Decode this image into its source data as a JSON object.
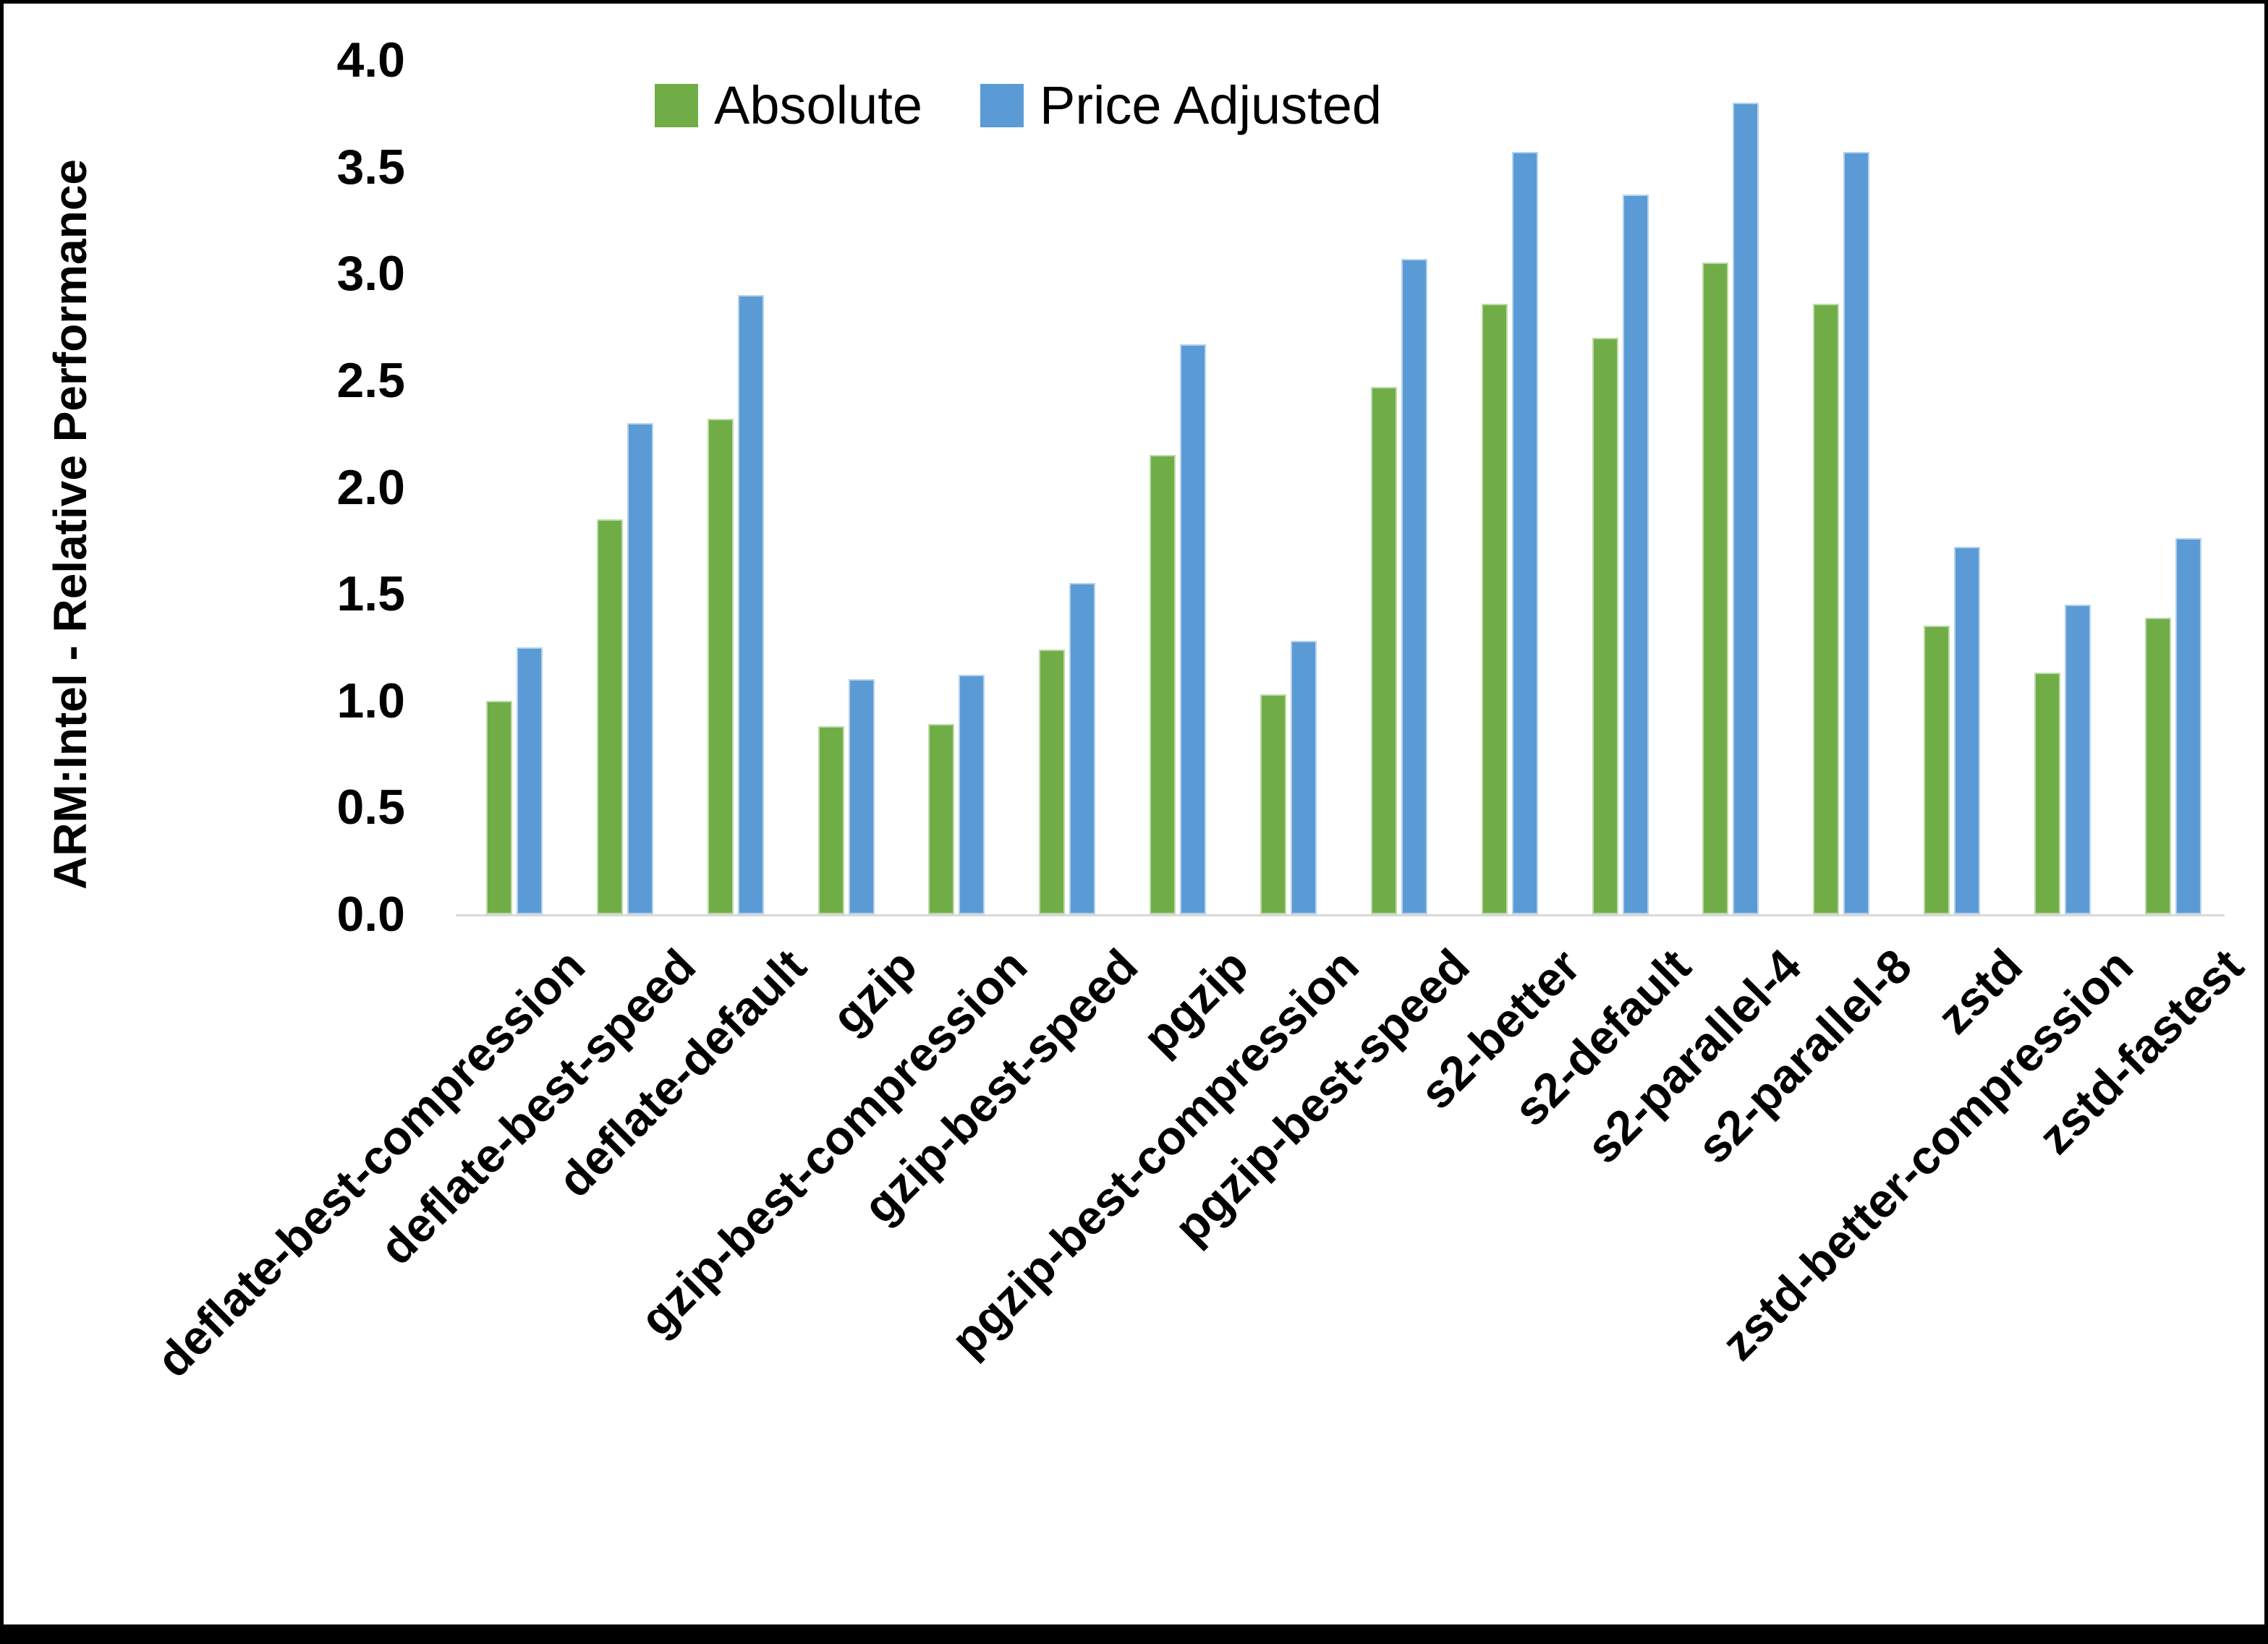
{
  "chart_data": {
    "type": "bar",
    "title": "",
    "ylabel": "ARM:Intel - Relative Performance",
    "xlabel": "",
    "ylim": [
      0.0,
      4.0
    ],
    "ytick_step": 0.5,
    "ytick_labels": [
      "0.0",
      "0.5",
      "1.0",
      "1.5",
      "2.0",
      "2.5",
      "3.0",
      "3.5",
      "4.0"
    ],
    "grid": false,
    "legend_position": "top-center",
    "background_color": "#ffffff",
    "axis_line_color": "#d9d9d9",
    "categories": [
      "deflate-best-compression",
      "deflate-best-speed",
      "deflate-default",
      "gzip",
      "gzip-best-compression",
      "gzip-best-speed",
      "pgzip",
      "pgzip-best-compression",
      "pgzip-best-speed",
      "s2-better",
      "s2-default",
      "s2-parallel-4",
      "s2-parallel-8",
      "zstd",
      "zstd-better-compression",
      "zstd-fastest"
    ],
    "series": [
      {
        "name": "Absolute",
        "color": "#70AD47",
        "values": [
          1.0,
          1.85,
          2.32,
          0.88,
          0.89,
          1.24,
          2.15,
          1.03,
          2.47,
          2.86,
          2.7,
          3.05,
          2.86,
          1.35,
          1.13,
          1.39
        ]
      },
      {
        "name": "Price Adjusted",
        "color": "#5B9BD5",
        "values": [
          1.25,
          2.3,
          2.9,
          1.1,
          1.12,
          1.55,
          2.67,
          1.28,
          3.07,
          3.57,
          3.37,
          3.8,
          3.57,
          1.72,
          1.45,
          1.76
        ]
      }
    ]
  }
}
